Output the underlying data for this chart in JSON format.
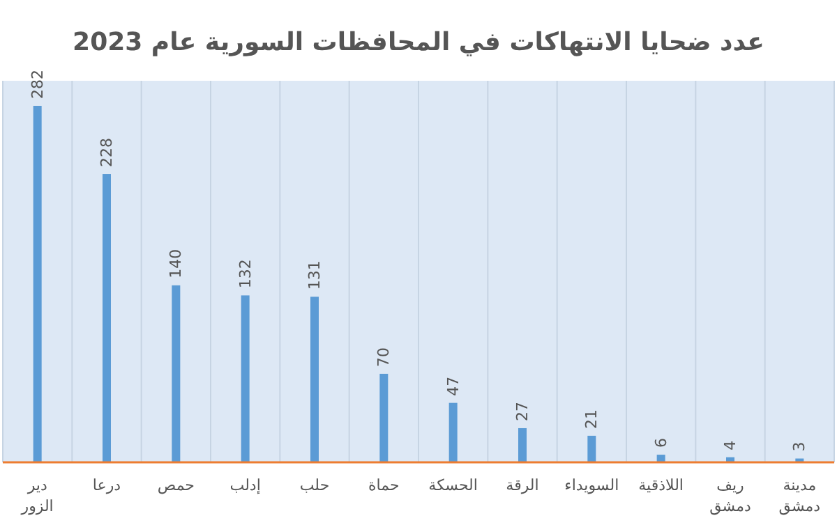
{
  "chart_data": {
    "type": "bar",
    "title": "عدد ضحايا الانتهاكات في المحافظات السورية عام 2023",
    "categories": [
      "دير الزور",
      "درعا",
      "حمص",
      "إدلب",
      "حلب",
      "حماة",
      "الحسكة",
      "الرقة",
      "السويداء",
      "اللاذقية",
      "ريف دمشق",
      "مدينة دمشق"
    ],
    "values": [
      282,
      228,
      140,
      132,
      131,
      70,
      47,
      27,
      21,
      6,
      4,
      3
    ],
    "color": "#5b9bd5",
    "data_labels": true,
    "grid": "x"
  }
}
